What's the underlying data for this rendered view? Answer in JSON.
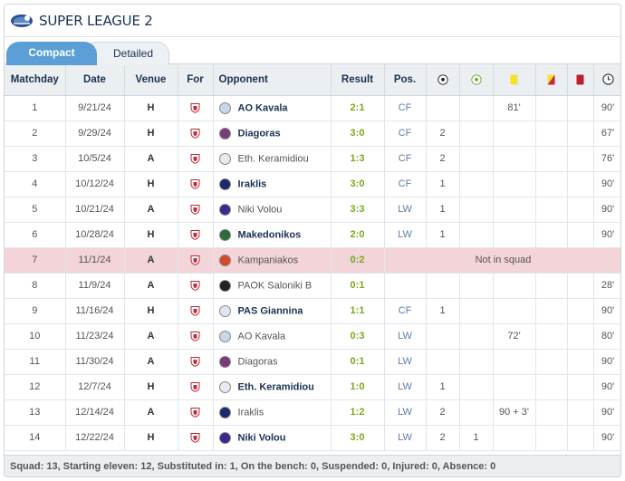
{
  "league": {
    "title": "SUPER LEAGUE 2",
    "logo_icon": "super-league-2-logo-icon"
  },
  "tabs": {
    "compact": "Compact",
    "detailed": "Detailed"
  },
  "columns": {
    "matchday": "Matchday",
    "date": "Date",
    "venue": "Venue",
    "for": "For",
    "opponent": "Opponent",
    "result": "Result",
    "pos": "Pos.",
    "goals_icon": "soccer-ball-icon",
    "assists_icon": "assist-ball-icon",
    "yellow_icon": "yellow-card-icon",
    "second_yellow_icon": "yellow-red-card-icon",
    "red_icon": "red-card-icon",
    "minutes_icon": "clock-icon"
  },
  "colors": {
    "win": "#78a821",
    "not_in_squad_bg": "#f2d4d9",
    "tab_active": "#5b9fd6"
  },
  "rows": [
    {
      "md": "1",
      "date": "9/21/24",
      "venue": "H",
      "opponent": "AO Kavala",
      "bold": true,
      "result": "2:1",
      "pos": "CF",
      "goals": "",
      "assists": "",
      "yellow": "81'",
      "yr": "",
      "red": "",
      "min": "90'",
      "badge": "#c8d6e6"
    },
    {
      "md": "2",
      "date": "9/29/24",
      "venue": "H",
      "opponent": "Diagoras",
      "bold": true,
      "result": "3:0",
      "pos": "CF",
      "goals": "2",
      "assists": "",
      "yellow": "",
      "yr": "",
      "red": "",
      "min": "67'",
      "badge": "#7a3b7a"
    },
    {
      "md": "3",
      "date": "10/5/24",
      "venue": "A",
      "opponent": "Eth. Keramidiou",
      "bold": false,
      "result": "1:3",
      "pos": "CF",
      "goals": "2",
      "assists": "",
      "yellow": "",
      "yr": "",
      "red": "",
      "min": "76'",
      "badge": "#e8e8ee"
    },
    {
      "md": "4",
      "date": "10/12/24",
      "venue": "H",
      "opponent": "Iraklis",
      "bold": true,
      "result": "3:0",
      "pos": "CF",
      "goals": "1",
      "assists": "",
      "yellow": "",
      "yr": "",
      "red": "",
      "min": "90'",
      "badge": "#1c2a6b"
    },
    {
      "md": "5",
      "date": "10/21/24",
      "venue": "A",
      "opponent": "Niki Volou",
      "bold": false,
      "result": "3:3",
      "pos": "LW",
      "goals": "1",
      "assists": "",
      "yellow": "",
      "yr": "",
      "red": "",
      "min": "90'",
      "badge": "#3b2a8c"
    },
    {
      "md": "6",
      "date": "10/28/24",
      "venue": "H",
      "opponent": "Makedonikos",
      "bold": true,
      "result": "2:0",
      "pos": "LW",
      "goals": "1",
      "assists": "",
      "yellow": "",
      "yr": "",
      "red": "",
      "min": "90'",
      "badge": "#2d6b3a"
    },
    {
      "md": "7",
      "date": "11/1/24",
      "venue": "A",
      "opponent": "Kampaniakos",
      "bold": false,
      "result": "0:2",
      "not_in_squad": "Not in squad",
      "badge": "#d24a2a"
    },
    {
      "md": "8",
      "date": "11/9/24",
      "venue": "A",
      "opponent": "PAOK Saloniki B",
      "bold": false,
      "result": "0:1",
      "pos": "",
      "goals": "",
      "assists": "",
      "yellow": "",
      "yr": "",
      "red": "",
      "min": "28'",
      "badge": "#222222"
    },
    {
      "md": "9",
      "date": "11/16/24",
      "venue": "H",
      "opponent": "PAS Giannina",
      "bold": true,
      "result": "1:1",
      "pos": "CF",
      "goals": "1",
      "assists": "",
      "yellow": "",
      "yr": "",
      "red": "",
      "min": "90'",
      "badge": "#dfe6f2"
    },
    {
      "md": "10",
      "date": "11/23/24",
      "venue": "A",
      "opponent": "AO Kavala",
      "bold": false,
      "result": "0:3",
      "pos": "LW",
      "goals": "",
      "assists": "",
      "yellow": "72'",
      "yr": "",
      "red": "",
      "min": "80'",
      "badge": "#c8d6e6"
    },
    {
      "md": "11",
      "date": "11/30/24",
      "venue": "A",
      "opponent": "Diagoras",
      "bold": false,
      "result": "0:1",
      "pos": "LW",
      "goals": "",
      "assists": "",
      "yellow": "",
      "yr": "",
      "red": "",
      "min": "90'",
      "badge": "#7a3b7a"
    },
    {
      "md": "12",
      "date": "12/7/24",
      "venue": "H",
      "opponent": "Eth. Keramidiou",
      "bold": true,
      "result": "1:0",
      "pos": "LW",
      "goals": "1",
      "assists": "",
      "yellow": "",
      "yr": "",
      "red": "",
      "min": "90'",
      "badge": "#e8e8ee"
    },
    {
      "md": "13",
      "date": "12/14/24",
      "venue": "A",
      "opponent": "Iraklis",
      "bold": false,
      "result": "1:2",
      "pos": "LW",
      "goals": "2",
      "assists": "",
      "yellow": "90 + 3'",
      "yr": "",
      "red": "",
      "min": "90'",
      "badge": "#1c2a6b"
    },
    {
      "md": "14",
      "date": "12/22/24",
      "venue": "H",
      "opponent": "Niki Volou",
      "bold": true,
      "result": "3:0",
      "pos": "LW",
      "goals": "2",
      "assists": "1",
      "yellow": "",
      "yr": "",
      "red": "",
      "min": "90'",
      "badge": "#3b2a8c"
    }
  ],
  "footer": {
    "summary": "Squad: 13, Starting eleven: 12, Substituted in: 1, On the bench: 0, Suspended: 0, Injured: 0, Absence: 0"
  }
}
